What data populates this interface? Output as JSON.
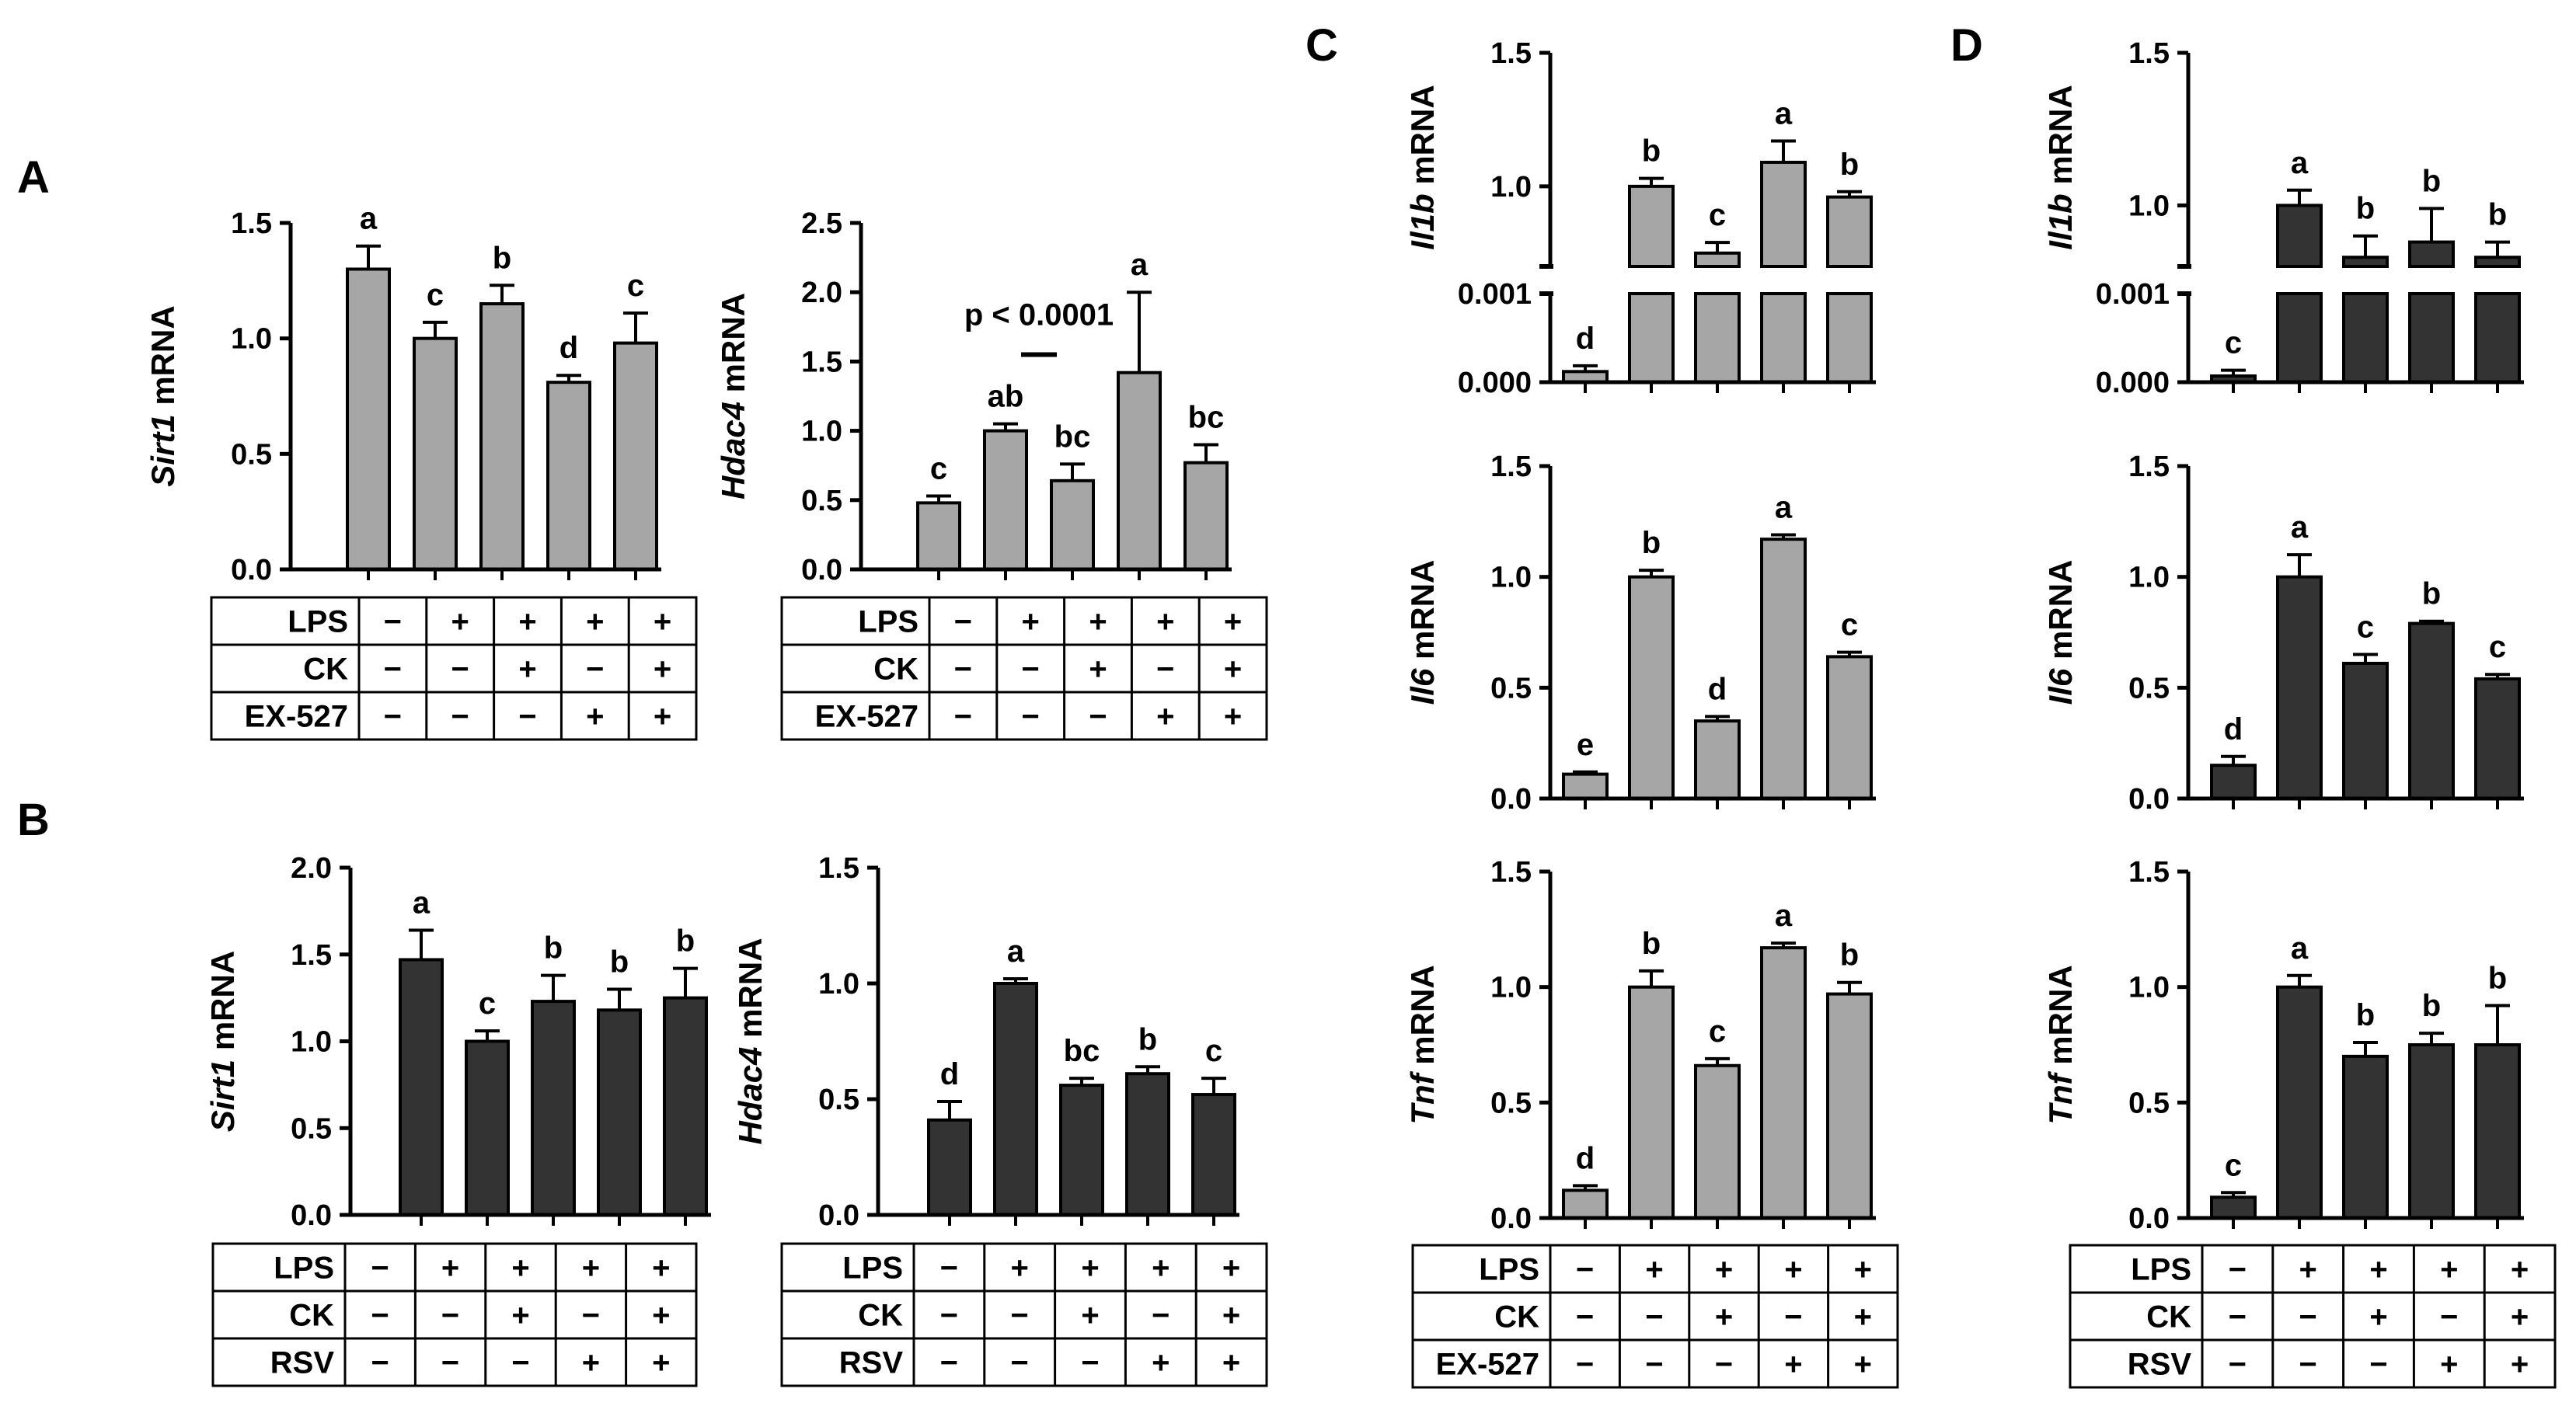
{
  "panels": [
    {
      "id": "A",
      "label": "A"
    },
    {
      "id": "B",
      "label": "B"
    },
    {
      "id": "C",
      "label": "C"
    },
    {
      "id": "D",
      "label": "D"
    }
  ],
  "colors": {
    "gray_bar": "#a6a6a6",
    "black_bar": "#333333",
    "axis": "#000000"
  },
  "chart_data": [
    {
      "id": "A1",
      "panel": "A",
      "type": "bar",
      "ylabel_gene": "Sirt1",
      "ylabel_rest": " mRNA",
      "ylim": [
        0,
        1.5
      ],
      "ticks": [
        "0.0",
        "0.5",
        "1.0",
        "1.5"
      ],
      "tick_values": [
        0,
        0.5,
        1.0,
        1.5
      ],
      "values": [
        1.3,
        1.0,
        1.15,
        0.81,
        0.98
      ],
      "errors": [
        0.1,
        0.07,
        0.08,
        0.03,
        0.13
      ],
      "letters": [
        "a",
        "c",
        "b",
        "d",
        "c"
      ],
      "color": "gray",
      "treatments": [
        {
          "name": "LPS",
          "signs": [
            "−",
            "+",
            "+",
            "+",
            "+"
          ]
        },
        {
          "name": "CK",
          "signs": [
            "−",
            "−",
            "+",
            "−",
            "+"
          ]
        },
        {
          "name": "EX-527",
          "signs": [
            "−",
            "−",
            "−",
            "+",
            "+"
          ]
        }
      ]
    },
    {
      "id": "A2",
      "panel": "A",
      "type": "bar",
      "ylabel_gene": "Hdac4",
      "ylabel_rest": " mRNA",
      "ylim": [
        0,
        2.5
      ],
      "ticks": [
        "0.0",
        "0.5",
        "1.0",
        "1.5",
        "2.0",
        "2.5"
      ],
      "tick_values": [
        0,
        0.5,
        1.0,
        1.5,
        2.0,
        2.5
      ],
      "values": [
        0.48,
        1.0,
        0.64,
        1.42,
        0.77
      ],
      "errors": [
        0.05,
        0.05,
        0.12,
        0.58,
        0.13
      ],
      "letters": [
        "c",
        "ab",
        "bc",
        "a",
        "bc"
      ],
      "color": "gray",
      "annotation": {
        "text": "p < 0.0001",
        "from": 1,
        "to": 2,
        "y": 1.55
      },
      "treatments": [
        {
          "name": "LPS",
          "signs": [
            "−",
            "+",
            "+",
            "+",
            "+"
          ]
        },
        {
          "name": "CK",
          "signs": [
            "−",
            "−",
            "+",
            "−",
            "+"
          ]
        },
        {
          "name": "EX-527",
          "signs": [
            "−",
            "−",
            "−",
            "+",
            "+"
          ]
        }
      ]
    },
    {
      "id": "B1",
      "panel": "B",
      "type": "bar",
      "ylabel_gene": "Sirt1",
      "ylabel_rest": " mRNA",
      "ylim": [
        0,
        2.0
      ],
      "ticks": [
        "0.0",
        "0.5",
        "1.0",
        "1.5",
        "2.0"
      ],
      "tick_values": [
        0,
        0.5,
        1.0,
        1.5,
        2.0
      ],
      "values": [
        1.47,
        1.0,
        1.23,
        1.18,
        1.25
      ],
      "errors": [
        0.17,
        0.06,
        0.15,
        0.12,
        0.17
      ],
      "letters": [
        "a",
        "c",
        "b",
        "b",
        "b"
      ],
      "color": "black",
      "treatments": [
        {
          "name": "LPS",
          "signs": [
            "−",
            "+",
            "+",
            "+",
            "+"
          ]
        },
        {
          "name": "CK",
          "signs": [
            "−",
            "−",
            "+",
            "−",
            "+"
          ]
        },
        {
          "name": "RSV",
          "signs": [
            "−",
            "−",
            "−",
            "+",
            "+"
          ]
        }
      ]
    },
    {
      "id": "B2",
      "panel": "B",
      "type": "bar",
      "ylabel_gene": "Hdac4",
      "ylabel_rest": " mRNA",
      "ylim": [
        0,
        1.5
      ],
      "ticks": [
        "0.0",
        "0.5",
        "1.0",
        "1.5"
      ],
      "tick_values": [
        0,
        0.5,
        1.0,
        1.5
      ],
      "values": [
        0.41,
        1.0,
        0.56,
        0.61,
        0.52
      ],
      "errors": [
        0.08,
        0.02,
        0.03,
        0.03,
        0.07
      ],
      "letters": [
        "d",
        "a",
        "bc",
        "b",
        "c"
      ],
      "color": "black",
      "treatments": [
        {
          "name": "LPS",
          "signs": [
            "−",
            "+",
            "+",
            "+",
            "+"
          ]
        },
        {
          "name": "CK",
          "signs": [
            "−",
            "−",
            "+",
            "−",
            "+"
          ]
        },
        {
          "name": "RSV",
          "signs": [
            "−",
            "−",
            "−",
            "+",
            "+"
          ]
        }
      ]
    },
    {
      "id": "C1",
      "panel": "C",
      "type": "bar",
      "ylabel_gene": "Il1b",
      "ylabel_rest": " mRNA",
      "broken": true,
      "upper": {
        "ylim": [
          0.7,
          1.5
        ],
        "ticks": [
          "1.0",
          "1.5"
        ],
        "tick_values": [
          1.0,
          1.5
        ]
      },
      "lower": {
        "ylim": [
          0,
          0.001
        ],
        "ticks": [
          "0.000",
          "0.001"
        ],
        "tick_values": [
          0,
          0.001
        ]
      },
      "values": [
        0.00012,
        1.0,
        0.75,
        1.09,
        0.96
      ],
      "errors": [
        3e-05,
        0.03,
        0.04,
        0.08,
        0.02
      ],
      "letters": [
        "d",
        "b",
        "c",
        "a",
        "b"
      ],
      "color": "gray"
    },
    {
      "id": "C2",
      "panel": "C",
      "type": "bar",
      "ylabel_gene": "Il6",
      "ylabel_rest": " mRNA",
      "ylim": [
        0,
        1.5
      ],
      "ticks": [
        "0.0",
        "0.5",
        "1.0",
        "1.5"
      ],
      "tick_values": [
        0,
        0.5,
        1.0,
        1.5
      ],
      "values": [
        0.11,
        1.0,
        0.35,
        1.17,
        0.64
      ],
      "errors": [
        0.01,
        0.03,
        0.02,
        0.02,
        0.02
      ],
      "letters": [
        "e",
        "b",
        "d",
        "a",
        "c"
      ],
      "color": "gray"
    },
    {
      "id": "C3",
      "panel": "C",
      "type": "bar",
      "ylabel_gene": "Tnf",
      "ylabel_rest": " mRNA",
      "ylim": [
        0,
        1.5
      ],
      "ticks": [
        "0.0",
        "0.5",
        "1.0",
        "1.5"
      ],
      "tick_values": [
        0,
        0.5,
        1.0,
        1.5
      ],
      "values": [
        0.12,
        1.0,
        0.66,
        1.17,
        0.97
      ],
      "errors": [
        0.02,
        0.07,
        0.03,
        0.02,
        0.05
      ],
      "letters": [
        "d",
        "b",
        "c",
        "a",
        "b"
      ],
      "color": "gray",
      "treatments": [
        {
          "name": "LPS",
          "signs": [
            "−",
            "+",
            "+",
            "+",
            "+"
          ]
        },
        {
          "name": "CK",
          "signs": [
            "−",
            "−",
            "+",
            "−",
            "+"
          ]
        },
        {
          "name": "EX-527",
          "signs": [
            "−",
            "−",
            "−",
            "+",
            "+"
          ]
        }
      ]
    },
    {
      "id": "D1",
      "panel": "D",
      "type": "bar",
      "ylabel_gene": "Il1b",
      "ylabel_rest": " mRNA",
      "broken": true,
      "upper": {
        "ylim": [
          0.8,
          1.5
        ],
        "ticks": [
          "1.0",
          "1.5"
        ],
        "tick_values": [
          1.0,
          1.5
        ]
      },
      "lower": {
        "ylim": [
          0,
          0.001
        ],
        "ticks": [
          "0.000",
          "0.001"
        ],
        "tick_values": [
          0,
          0.001
        ]
      },
      "values": [
        7e-05,
        1.0,
        0.83,
        0.88,
        0.83
      ],
      "errors": [
        3e-05,
        0.05,
        0.07,
        0.11,
        0.05
      ],
      "letters": [
        "c",
        "a",
        "b",
        "b",
        "b"
      ],
      "color": "black"
    },
    {
      "id": "D2",
      "panel": "D",
      "type": "bar",
      "ylabel_gene": "Il6",
      "ylabel_rest": " mRNA",
      "ylim": [
        0,
        1.5
      ],
      "ticks": [
        "0.0",
        "0.5",
        "1.0",
        "1.5"
      ],
      "tick_values": [
        0,
        0.5,
        1.0,
        1.5
      ],
      "values": [
        0.15,
        1.0,
        0.61,
        0.79,
        0.54
      ],
      "errors": [
        0.04,
        0.1,
        0.04,
        0.01,
        0.02
      ],
      "letters": [
        "d",
        "a",
        "c",
        "b",
        "c"
      ],
      "color": "black"
    },
    {
      "id": "D3",
      "panel": "D",
      "type": "bar",
      "ylabel_gene": "Tnf",
      "ylabel_rest": " mRNA",
      "ylim": [
        0,
        1.5
      ],
      "ticks": [
        "0.0",
        "0.5",
        "1.0",
        "1.5"
      ],
      "tick_values": [
        0,
        0.5,
        1.0,
        1.5
      ],
      "values": [
        0.09,
        1.0,
        0.7,
        0.75,
        0.75
      ],
      "errors": [
        0.02,
        0.05,
        0.06,
        0.05,
        0.17
      ],
      "letters": [
        "c",
        "a",
        "b",
        "b",
        "b"
      ],
      "color": "black",
      "treatments": [
        {
          "name": "LPS",
          "signs": [
            "−",
            "+",
            "+",
            "+",
            "+"
          ]
        },
        {
          "name": "CK",
          "signs": [
            "−",
            "−",
            "+",
            "−",
            "+"
          ]
        },
        {
          "name": "RSV",
          "signs": [
            "−",
            "−",
            "−",
            "+",
            "+"
          ]
        }
      ]
    }
  ]
}
